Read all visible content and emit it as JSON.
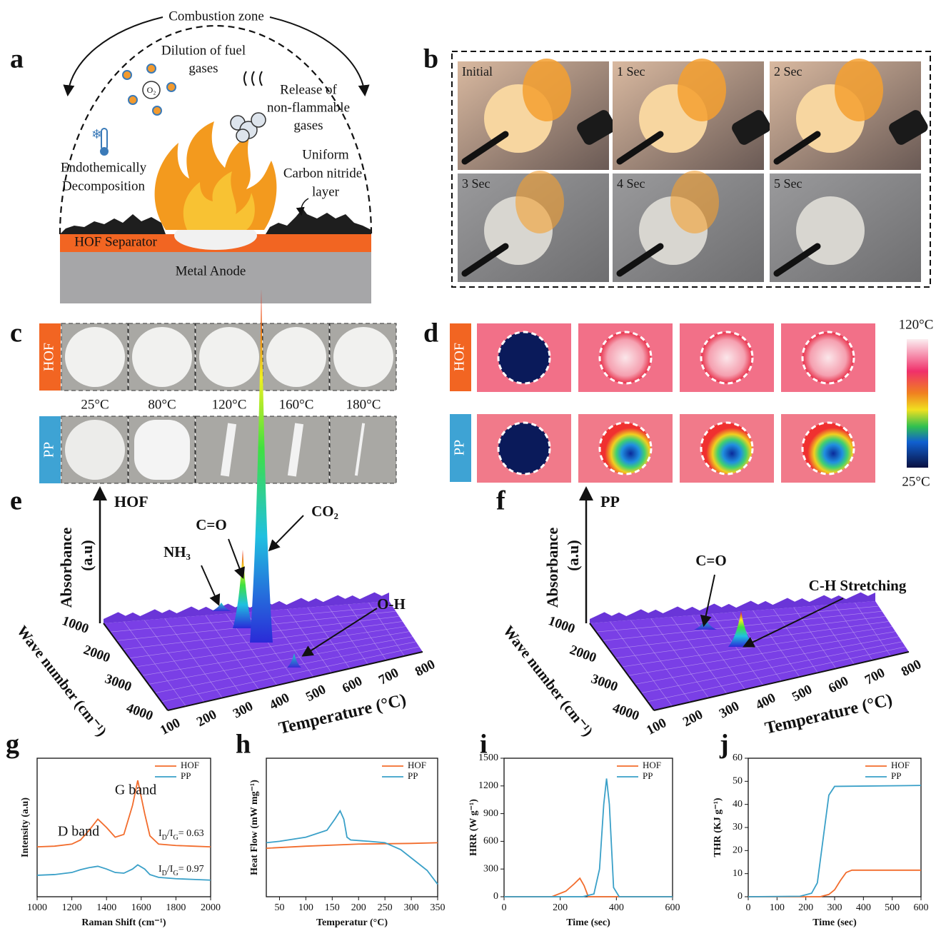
{
  "panel_a": {
    "label": "a",
    "combustion_zone": "Combustion zone",
    "dilution": [
      "Dilution of fuel",
      "gases"
    ],
    "o2": "O₂",
    "release": [
      "Release of",
      "non-flammable",
      "gases"
    ],
    "endothermic": [
      "Endothemically",
      "Decomposition"
    ],
    "carbon_layer": [
      "Uniform",
      "Carbon nitride",
      "layer"
    ],
    "separator": "HOF Separator",
    "anode": "Metal Anode"
  },
  "panel_b": {
    "label": "b",
    "frames": [
      "Initial",
      "1 Sec",
      "2 Sec",
      "3 Sec",
      "4 Sec",
      "5 Sec"
    ]
  },
  "panel_c": {
    "label": "c",
    "rows": [
      "HOF",
      "PP"
    ],
    "temperatures": [
      "25°C",
      "80°C",
      "120°C",
      "160°C",
      "180°C"
    ]
  },
  "panel_d": {
    "label": "d",
    "rows": [
      "HOF",
      "PP"
    ],
    "scale_max": "120°C",
    "scale_min": "25°C"
  },
  "panel_e": {
    "label": "e",
    "sample": "HOF",
    "z_label": [
      "Absorbance",
      "(a.u)"
    ],
    "y_label": "Wave number (cm⁻¹)",
    "x_label": "Temperature (°C)",
    "y_ticks": [
      1000,
      2000,
      3000,
      4000
    ],
    "x_ticks": [
      100,
      200,
      300,
      400,
      500,
      600,
      700,
      800
    ],
    "peaks": [
      "NH₃",
      "C=O",
      "CO₂",
      "O-H"
    ]
  },
  "panel_f": {
    "label": "f",
    "sample": "PP",
    "z_label": [
      "Absorbance",
      "(a.u)"
    ],
    "y_label": "Wave number (cm⁻¹)",
    "x_label": "Temperature (°C)",
    "y_ticks": [
      1000,
      2000,
      3000,
      4000
    ],
    "x_ticks": [
      100,
      200,
      300,
      400,
      500,
      600,
      700,
      800
    ],
    "peaks": [
      "C=O",
      "C-H Stretching"
    ]
  },
  "chart_data": [
    {
      "type": "line",
      "label": "g",
      "x_label": "Raman Shift (cm⁻¹)",
      "y_label": "Intensity (a.u)",
      "xlim": [
        1000,
        2000
      ],
      "xticks": [
        1000,
        1200,
        1400,
        1600,
        1800,
        2000
      ],
      "ylim": [
        0,
        10
      ],
      "annotations": [
        "D band",
        "G band"
      ],
      "ratio_labels": [
        [
          "I",
          "D",
          "/I",
          "G",
          "= 0.63"
        ],
        [
          "I",
          "D",
          "/I",
          "G",
          "= 0.97"
        ]
      ],
      "series": [
        {
          "name": "HOF",
          "color": "#f26c2c",
          "x": [
            1000,
            1100,
            1200,
            1250,
            1300,
            1350,
            1400,
            1450,
            1500,
            1550,
            1580,
            1620,
            1650,
            1700,
            1800,
            1900,
            2000
          ],
          "values": [
            3.6,
            3.65,
            3.8,
            4.1,
            4.8,
            5.6,
            5.0,
            4.3,
            4.5,
            6.6,
            8.4,
            6.0,
            4.4,
            3.8,
            3.7,
            3.65,
            3.6
          ]
        },
        {
          "name": "PP",
          "color": "#3aa0c8",
          "x": [
            1000,
            1100,
            1200,
            1250,
            1300,
            1350,
            1400,
            1450,
            1500,
            1550,
            1580,
            1620,
            1650,
            1700,
            1800,
            1900,
            2000
          ],
          "values": [
            1.55,
            1.6,
            1.75,
            1.95,
            2.1,
            2.2,
            2.0,
            1.75,
            1.7,
            2.0,
            2.3,
            2.0,
            1.6,
            1.4,
            1.3,
            1.25,
            1.2
          ]
        }
      ]
    },
    {
      "type": "line",
      "label": "h",
      "x_label": "Temperatur (°C)",
      "y_label": "Heat Flow (mW mg⁻¹)",
      "xlim": [
        25,
        350
      ],
      "xticks": [
        50,
        100,
        150,
        200,
        250,
        300,
        350
      ],
      "ylim": [
        0,
        10
      ],
      "series": [
        {
          "name": "HOF",
          "color": "#f26c2c",
          "x": [
            25,
            100,
            200,
            300,
            350
          ],
          "values": [
            3.5,
            3.65,
            3.8,
            3.85,
            3.9
          ]
        },
        {
          "name": "PP",
          "color": "#3aa0c8",
          "x": [
            25,
            50,
            100,
            140,
            155,
            165,
            172,
            178,
            185,
            220,
            250,
            280,
            310,
            330,
            350
          ],
          "values": [
            3.9,
            4.0,
            4.3,
            4.8,
            5.6,
            6.2,
            5.6,
            4.3,
            4.1,
            4.0,
            3.9,
            3.4,
            2.5,
            1.9,
            0.9
          ]
        }
      ]
    },
    {
      "type": "line",
      "label": "i",
      "x_label": "Time (sec)",
      "y_label": "HRR (W g⁻¹)",
      "xlim": [
        0,
        600
      ],
      "xticks": [
        0,
        200,
        400,
        600
      ],
      "ylim": [
        0,
        1500
      ],
      "yticks": [
        0,
        300,
        600,
        900,
        1200,
        1500
      ],
      "series": [
        {
          "name": "HOF",
          "color": "#f26c2c",
          "x": [
            0,
            170,
            220,
            250,
            270,
            285,
            300,
            600
          ],
          "values": [
            0,
            0,
            60,
            140,
            200,
            120,
            0,
            0
          ]
        },
        {
          "name": "PP",
          "color": "#3aa0c8",
          "x": [
            0,
            280,
            320,
            340,
            355,
            365,
            375,
            390,
            410,
            600
          ],
          "values": [
            0,
            0,
            30,
            300,
            1000,
            1280,
            1000,
            100,
            0,
            0
          ]
        }
      ]
    },
    {
      "type": "line",
      "label": "j",
      "x_label": "Time (sec)",
      "y_label": "THR (KJ g⁻¹)",
      "xlim": [
        0,
        600
      ],
      "xticks": [
        0,
        100,
        200,
        300,
        400,
        500,
        600
      ],
      "ylim": [
        0,
        60
      ],
      "yticks": [
        0,
        10,
        20,
        30,
        40,
        50,
        60
      ],
      "series": [
        {
          "name": "HOF",
          "color": "#f26c2c",
          "x": [
            0,
            250,
            280,
            300,
            320,
            340,
            360,
            600
          ],
          "values": [
            0,
            0,
            1,
            3,
            7,
            10.5,
            11.5,
            11.5
          ]
        },
        {
          "name": "PP",
          "color": "#3aa0c8",
          "x": [
            0,
            180,
            220,
            240,
            260,
            280,
            300,
            600
          ],
          "values": [
            0,
            0.2,
            1.5,
            6,
            25,
            44,
            47.8,
            48.2
          ]
        }
      ]
    }
  ]
}
